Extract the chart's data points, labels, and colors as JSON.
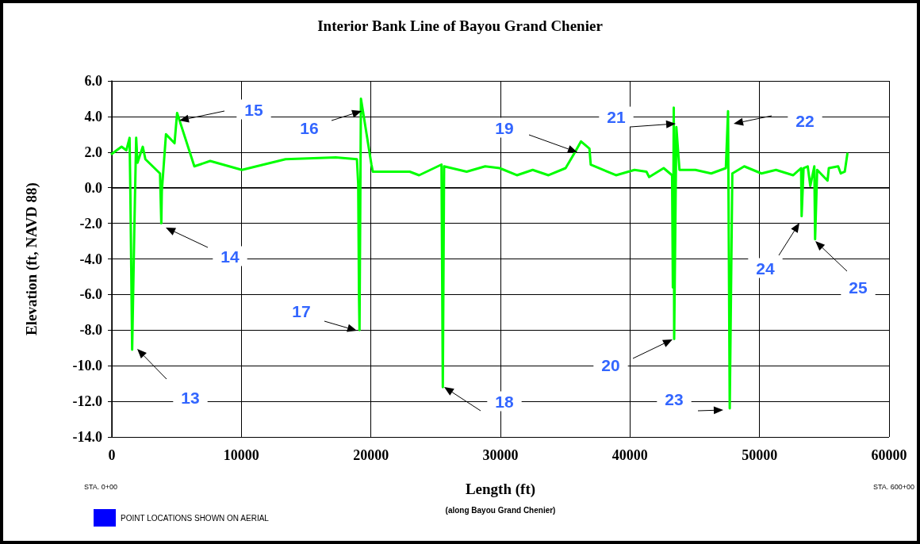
{
  "chart_data": {
    "type": "line",
    "title": "Interior Bank Line of Bayou Grand Chenier",
    "xlabel": "Length (ft)",
    "ylabel": "Elevation (ft, NAVD 88)",
    "x": [
      0,
      750,
      1120,
      1370,
      1430,
      1570,
      1730,
      1880,
      1980,
      2390,
      2590,
      3720,
      3820,
      3860,
      4180,
      4840,
      5040,
      6370,
      7590,
      10040,
      13410,
      17290,
      18920,
      19020,
      19080,
      19120,
      19230,
      19430,
      20040,
      20150,
      21170,
      23000,
      23720,
      25450,
      25550,
      25650,
      27390,
      28820,
      29940,
      31270,
      32490,
      33710,
      35030,
      35760,
      36220,
      36870,
      36970,
      38920,
      40350,
      41270,
      41480,
      42600,
      43250,
      43310,
      43380,
      43410,
      43580,
      43820,
      45050,
      46270,
      47400,
      47570,
      47700,
      47900,
      48820,
      50150,
      51270,
      52600,
      53210,
      53250,
      53400,
      53720,
      53920,
      54230,
      54290,
      54450,
      55250,
      55350,
      56070,
      56270,
      56580,
      56780
    ],
    "series": [
      {
        "color": "#00ff00",
        "values": [
          1.9,
          2.3,
          2.1,
          2.8,
          -0.2,
          -9.1,
          -2.6,
          2.8,
          1.4,
          2.3,
          1.6,
          0.8,
          -2.0,
          -0.2,
          3.0,
          2.5,
          4.2,
          1.2,
          1.5,
          1.0,
          1.6,
          1.7,
          1.6,
          0.2,
          -6.0,
          -8.0,
          5.0,
          4.1,
          1.3,
          0.9,
          0.9,
          0.9,
          0.7,
          1.3,
          -11.2,
          1.2,
          0.9,
          1.2,
          1.1,
          0.7,
          1.0,
          0.7,
          1.1,
          2.0,
          2.6,
          2.2,
          1.3,
          0.7,
          1.0,
          0.9,
          0.6,
          1.1,
          0.7,
          -5.6,
          4.5,
          -8.5,
          3.4,
          1.0,
          1.0,
          0.8,
          1.1,
          4.3,
          -12.4,
          0.8,
          1.2,
          0.8,
          1.0,
          0.7,
          1.1,
          -1.6,
          1.1,
          1.2,
          0.1,
          1.2,
          -2.9,
          1.0,
          0.4,
          1.1,
          1.2,
          0.8,
          0.9,
          1.9
        ]
      }
    ],
    "xlim": [
      0,
      60000
    ],
    "xticks": [
      0,
      10000,
      20000,
      30000,
      40000,
      50000,
      60000
    ],
    "ylim": [
      -14,
      6
    ],
    "yticks": [
      {
        "value": -14,
        "label": "-14.0"
      },
      {
        "value": -12,
        "label": "-12.0"
      },
      {
        "value": -10,
        "label": "-10.0"
      },
      {
        "value": -8,
        "label": "-8.0"
      },
      {
        "value": -6,
        "label": "-6.0"
      },
      {
        "value": -4,
        "label": "-4.0"
      },
      {
        "value": -2,
        "label": "-2.0"
      },
      {
        "value": 0,
        "label": "0.0"
      },
      {
        "value": 2,
        "label": "2.0"
      },
      {
        "value": 4,
        "label": "4.0"
      },
      {
        "value": 6,
        "label": "6.0"
      }
    ],
    "grid": true,
    "marker": "none",
    "line_style": "solid",
    "annotations": [
      "13",
      "14",
      "15",
      "16",
      "17",
      "18",
      "19",
      "20",
      "21",
      "22",
      "23",
      "24",
      "25",
      "STA. 0+00",
      "STA. 600+00",
      "(along Bayou Grand Chenier)",
      "POINT LOCATIONS SHOWN ON AERIAL"
    ]
  }
}
